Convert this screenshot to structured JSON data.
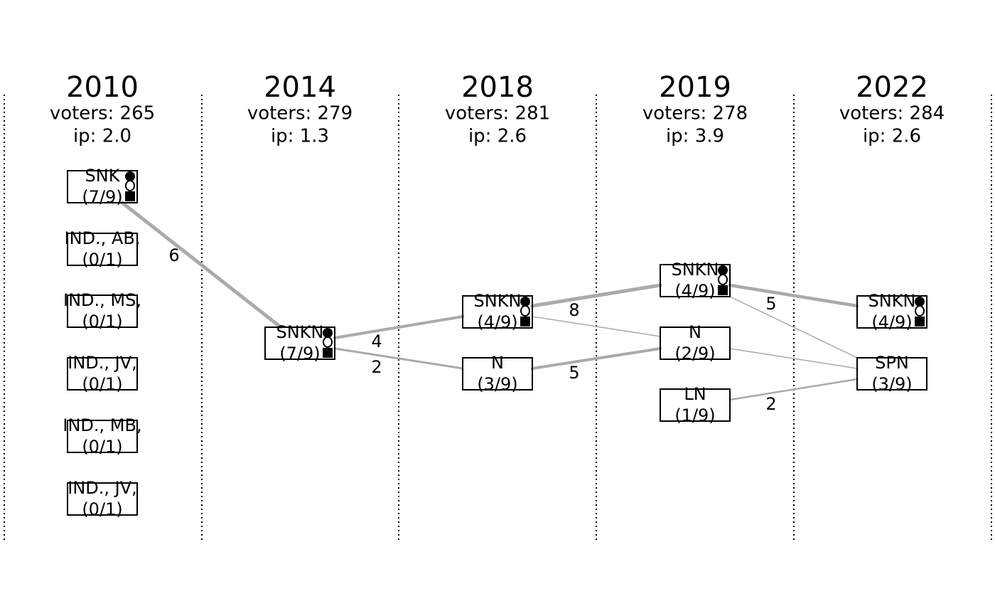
{
  "columns": [
    {
      "year": "2010",
      "voters": "voters: 265",
      "ip": "ip: 2.0",
      "nodes": [
        {
          "name": "SNK",
          "seats": "(7/9)"
        },
        {
          "name": "IND., AB,",
          "seats": "(0/1)"
        },
        {
          "name": "IND., MS,",
          "seats": "(0/1)"
        },
        {
          "name": "IND., JV,",
          "seats": "(0/1)"
        },
        {
          "name": "IND., MB,",
          "seats": "(0/1)"
        },
        {
          "name": "IND., JV,",
          "seats": "(0/1)"
        }
      ]
    },
    {
      "year": "2014",
      "voters": "voters: 279",
      "ip": "ip: 1.3",
      "nodes": [
        {
          "name": "SNKN",
          "seats": "(7/9)"
        }
      ]
    },
    {
      "year": "2018",
      "voters": "voters: 281",
      "ip": "ip: 2.6",
      "nodes": [
        {
          "name": "SNKN",
          "seats": "(4/9)"
        },
        {
          "name": "N",
          "seats": "(3/9)"
        }
      ]
    },
    {
      "year": "2019",
      "voters": "voters: 278",
      "ip": "ip: 3.9",
      "nodes": [
        {
          "name": "SNKN",
          "seats": "(4/9)"
        },
        {
          "name": "N",
          "seats": "(2/9)"
        },
        {
          "name": "LN",
          "seats": "(1/9)"
        }
      ]
    },
    {
      "year": "2022",
      "voters": "voters: 284",
      "ip": "ip: 2.6",
      "nodes": [
        {
          "name": "SNKN",
          "seats": "(4/9)"
        },
        {
          "name": "SPN",
          "seats": "(3/9)"
        }
      ]
    }
  ],
  "edge_labels": [
    "6",
    "4",
    "2",
    "8",
    "5",
    "5",
    "2"
  ]
}
